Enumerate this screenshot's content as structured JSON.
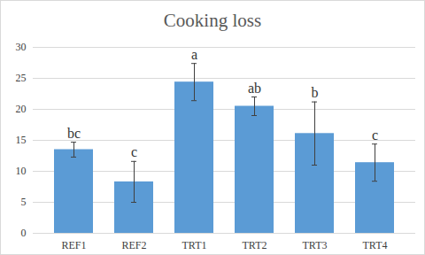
{
  "chart_data": {
    "type": "bar",
    "title": "Cooking loss",
    "categories": [
      "REF1",
      "REF2",
      "TRT1",
      "TRT2",
      "TRT3",
      "TRT4"
    ],
    "values": [
      13.5,
      8.3,
      24.4,
      20.5,
      16.1,
      11.4
    ],
    "errors": [
      1.2,
      3.3,
      3.0,
      1.5,
      5.1,
      3.0
    ],
    "annotations": [
      "bc",
      "c",
      "a",
      "ab",
      "b",
      "c"
    ],
    "color": "#5b9bd5",
    "ylim": [
      0,
      30
    ],
    "yticks": [
      0,
      5,
      10,
      15,
      20,
      25,
      30
    ],
    "grid": true
  }
}
